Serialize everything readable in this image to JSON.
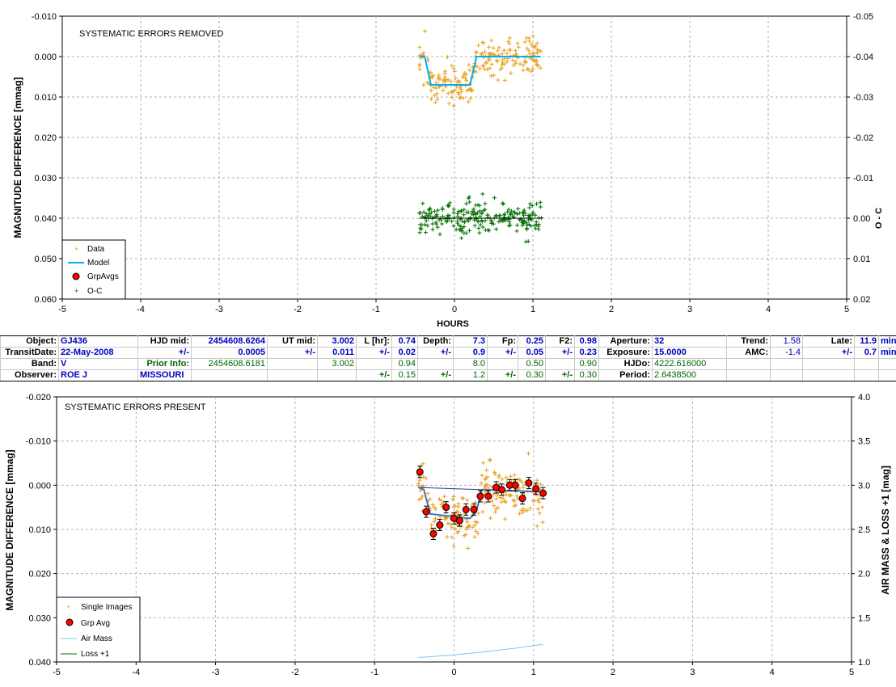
{
  "chart_data": [
    {
      "type": "scatter",
      "title": "SYSTEMATIC ERRORS REMOVED",
      "xlabel": "HOURS",
      "ylabel": "MAGNITUDE DIFFERENCE [mmag]",
      "y2label": "O - C",
      "xlim": [
        -5,
        5
      ],
      "ylim": [
        -0.01,
        0.06
      ],
      "y_inverted": true,
      "y2lim": [
        -0.05,
        0.02
      ],
      "y2_inverted": true,
      "xticks": [
        "-5",
        "-4",
        "-3",
        "-2",
        "-1",
        "0",
        "1",
        "2",
        "3",
        "4",
        "5"
      ],
      "yticks": [
        "-0.010",
        "0.000",
        "0.010",
        "0.020",
        "0.030",
        "0.040",
        "0.050",
        "0.060"
      ],
      "y2ticks": [
        "-0.05",
        "-0.04",
        "-0.03",
        "-0.02",
        "-0.01",
        "0.00",
        "0.01",
        "0.02"
      ],
      "grid": true,
      "legend_position": "bottom-left",
      "legend": [
        "Data",
        "Model",
        "GrpAvgs",
        "O-C"
      ],
      "colors": {
        "data": "#e8a020",
        "model": "#00b0f0",
        "grpavg": "#ff0000",
        "oc": "#007000",
        "ocline": "#000000"
      },
      "model": {
        "x": [
          -0.45,
          -0.38,
          -0.3,
          0.2,
          0.28,
          0.35,
          1.1
        ],
        "y": [
          0.0,
          0.0,
          0.007,
          0.007,
          0.0,
          0.0,
          0.0
        ]
      },
      "series": [
        {
          "name": "Data",
          "x_range": [
            -0.45,
            1.12
          ],
          "count": 230,
          "scatter": 0.0045
        },
        {
          "name": "O-C",
          "x_range": [
            -0.45,
            1.12
          ],
          "center": 0.04,
          "count": 230,
          "scatter": 0.0035
        }
      ]
    },
    {
      "type": "scatter",
      "title": "SYSTEMATIC ERRORS PRESENT",
      "xlabel": "",
      "ylabel": "MAGNITUDE DIFFERENCE [mmag]",
      "y2label": "AIR MASS & LOSS +1 [mag]",
      "xlim": [
        -5,
        5
      ],
      "ylim": [
        -0.02,
        0.04
      ],
      "y_inverted": true,
      "y2lim": [
        1.0,
        4.0
      ],
      "xticks": [
        "-5",
        "-4",
        "-3",
        "-2",
        "-1",
        "0",
        "1",
        "2",
        "3",
        "4",
        "5"
      ],
      "yticks": [
        "-0.020",
        "-0.010",
        "0.000",
        "0.010",
        "0.020",
        "0.030",
        "0.040"
      ],
      "y2ticks": [
        "1.0",
        "1.5",
        "2.0",
        "2.5",
        "3.0",
        "3.5",
        "4.0"
      ],
      "grid": true,
      "legend_position": "bottom-left",
      "legend": [
        "Single Images",
        "Grp Avg",
        "Air Mass",
        "Loss +1"
      ],
      "colors": {
        "data": "#e8a020",
        "grpavg": "#ff0000",
        "model": "#4472c4",
        "trend": "#1f3f8f",
        "airmass": "#7cc8f0",
        "loss": "#007000"
      },
      "group_averages": {
        "x": [
          -0.43,
          -0.35,
          -0.26,
          -0.18,
          -0.1,
          0.0,
          0.07,
          0.15,
          0.25,
          0.33,
          0.43,
          0.53,
          0.6,
          0.7,
          0.77,
          0.86,
          0.94,
          1.03,
          1.12
        ],
        "y": [
          -0.003,
          0.006,
          0.011,
          0.009,
          0.005,
          0.0075,
          0.008,
          0.0055,
          0.0055,
          0.0025,
          0.0025,
          0.0005,
          0.001,
          0.0,
          0.0,
          0.003,
          -0.0005,
          0.0008,
          0.0018
        ]
      },
      "model": {
        "x": [
          -0.45,
          -0.38,
          -0.3,
          0.2,
          0.28,
          0.35,
          1.1
        ],
        "y": [
          0.0005,
          0.001,
          0.0065,
          0.0075,
          0.006,
          0.001,
          0.0015
        ]
      },
      "trend": {
        "x": [
          -0.45,
          1.12
        ],
        "y": [
          0.0005,
          0.0015
        ]
      },
      "airmass": {
        "x": [
          -0.45,
          1.12
        ],
        "y": [
          1.05,
          1.2
        ]
      },
      "series": [
        {
          "name": "Single Images",
          "x_range": [
            -0.45,
            1.12
          ],
          "count": 230,
          "scatter": 0.005
        }
      ]
    }
  ],
  "info": {
    "object_label": "Object:",
    "object": "GJ436",
    "hjd_mid_label": "HJD mid:",
    "hjd_mid": "2454608.6264",
    "ut_mid_label": "UT mid:",
    "ut_mid": "3.002",
    "l_label": "L [hr]:",
    "l": "0.74",
    "depth_label": "Depth:",
    "depth": "7.3",
    "fp_label": "Fp:",
    "fp": "0.25",
    "f2_label": "F2:",
    "f2": "0.98",
    "aperture_label": "Aperture:",
    "aperture": "32",
    "trend_label": "Trend:",
    "trend": "1.58",
    "late_label": "Late:",
    "late": "11.9",
    "late_unit": "min",
    "transitdate_label": "TransitDate:",
    "transitdate": "22-May-2008",
    "pm": "+/-",
    "hjd_err": "0.0005",
    "ut_err": "0.011",
    "l_err": "0.02",
    "depth_err": "0.9",
    "fp_err": "0.05",
    "f2_err": "0.23",
    "exposure_label": "Exposure:",
    "exposure": "15.0000",
    "amc_label": "AMC:",
    "amc": "-1.4",
    "late_err": "0.7",
    "late_err_unit": "min",
    "band_label": "Band:",
    "band": "V",
    "prior_label": "Prior Info:",
    "prior_hjd": "2454608.6181",
    "prior_ut": "3.002",
    "prior_l": "0.94",
    "prior_depth": "8.0",
    "prior_fp": "0.50",
    "prior_f2": "0.90",
    "hjdo_label": "HJDo:",
    "hjdo": "4222.616000",
    "observer_label": "Observer:",
    "observer": "ROE J",
    "location": "MISSOURI",
    "prior_l_err": "0.15",
    "prior_depth_err": "1.2",
    "prior_fp_err": "0.30",
    "prior_f2_err": "0.30",
    "period_label": "Period:",
    "period": "2.6438500"
  }
}
